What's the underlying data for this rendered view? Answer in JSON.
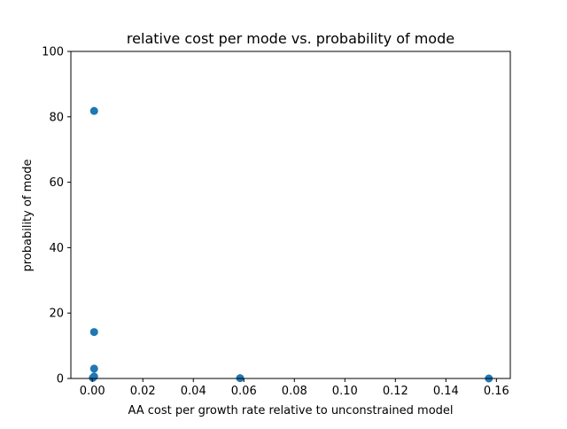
{
  "chart_data": {
    "type": "scatter",
    "title": "relative cost per mode vs. probability of mode",
    "xlabel": "AA cost per growth rate relative to unconstrained model",
    "ylabel": "probability of mode",
    "xlim": [
      -0.0085,
      0.1655
    ],
    "ylim": [
      0,
      100
    ],
    "xticks": [
      0.0,
      0.02,
      0.04,
      0.06,
      0.08,
      0.1,
      0.12,
      0.14,
      0.16
    ],
    "xtick_labels": [
      "0.00",
      "0.02",
      "0.04",
      "0.06",
      "0.08",
      "0.10",
      "0.12",
      "0.14",
      "0.16"
    ],
    "yticks": [
      0,
      20,
      40,
      60,
      80,
      100
    ],
    "ytick_labels": [
      "0",
      "20",
      "40",
      "60",
      "80",
      "100"
    ],
    "grid": false,
    "series": [
      {
        "color": "#1f77b4",
        "points": [
          {
            "x": 0.0007,
            "y": 81.8
          },
          {
            "x": 0.0007,
            "y": 14.2
          },
          {
            "x": 0.0007,
            "y": 3.0
          },
          {
            "x": 0.0007,
            "y": 0.6
          },
          {
            "x": 0.0002,
            "y": 0.2
          },
          {
            "x": 0.0585,
            "y": 0.1
          },
          {
            "x": 0.157,
            "y": 0.0
          }
        ]
      }
    ]
  }
}
